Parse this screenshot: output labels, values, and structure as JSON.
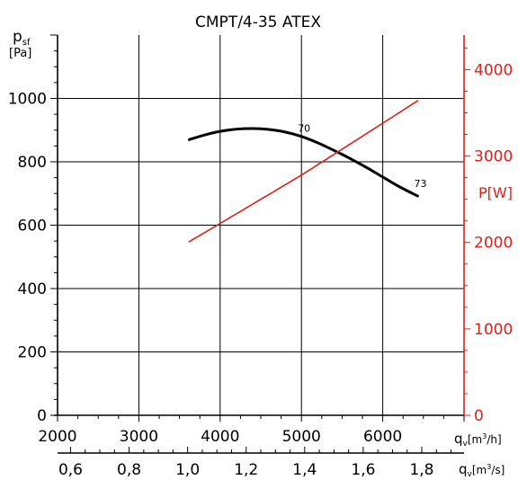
{
  "chart_data": {
    "type": "line",
    "title": "CMPT/4-35 ATEX",
    "y_left_label": {
      "symbol": "p",
      "sub": "sf",
      "unit": "[Pa]"
    },
    "y_right_label": "P[W]",
    "x_top_label": {
      "symbol": "q",
      "sub": "v",
      "unit": "[m",
      "sup": "3",
      "tail": "/h]"
    },
    "x_bottom_label": {
      "symbol": "q",
      "sub": "v",
      "unit": "[m",
      "sup": "3",
      "tail": "/s]"
    },
    "x_ticks_m3h": [
      2000,
      3000,
      4000,
      5000,
      6000
    ],
    "x_ticks_m3h_labels": [
      "2000",
      "3000",
      "4000",
      "5000",
      "6000"
    ],
    "x_ticks_m3s": [
      0.6,
      0.8,
      1.0,
      1.2,
      1.4,
      1.6,
      1.8
    ],
    "x_ticks_m3s_labels": [
      "0,6",
      "0,8",
      "1,0",
      "1,2",
      "1,4",
      "1,6",
      "1,8"
    ],
    "xlim_m3h": [
      2000,
      7000
    ],
    "y_left_ticks": [
      0,
      200,
      400,
      600,
      800,
      1000
    ],
    "y_left_tick_labels": [
      "0",
      "200",
      "400",
      "600",
      "800",
      "1000"
    ],
    "ylim_left": [
      0,
      1200
    ],
    "y_right_ticks": [
      0,
      1000,
      2000,
      3000,
      4000
    ],
    "y_right_tick_labels": [
      "0",
      "1000",
      "2000",
      "3000",
      "4000"
    ],
    "ylim_right": [
      0,
      4400
    ],
    "grid": true,
    "series": [
      {
        "axis": "left",
        "color": "#000000",
        "x": [
          3620,
          3800,
          4000,
          4200,
          4400,
          4600,
          4800,
          5000,
          5200,
          5400,
          5600,
          5800,
          6000,
          6200,
          6430
        ],
        "y": [
          870,
          884,
          896,
          903,
          905,
          902,
          894,
          880,
          860,
          836,
          810,
          782,
          752,
          722,
          692
        ]
      },
      {
        "axis": "right",
        "color": "#e0201b",
        "x": [
          3620,
          4000,
          4500,
          5000,
          5500,
          6000,
          6430
        ],
        "y": [
          2010,
          2220,
          2500,
          2780,
          3080,
          3380,
          3640
        ]
      }
    ],
    "annotations": [
      {
        "text": "70",
        "x": 5000,
        "y": 890
      },
      {
        "text": "73",
        "x": 6430,
        "y": 715
      }
    ]
  }
}
